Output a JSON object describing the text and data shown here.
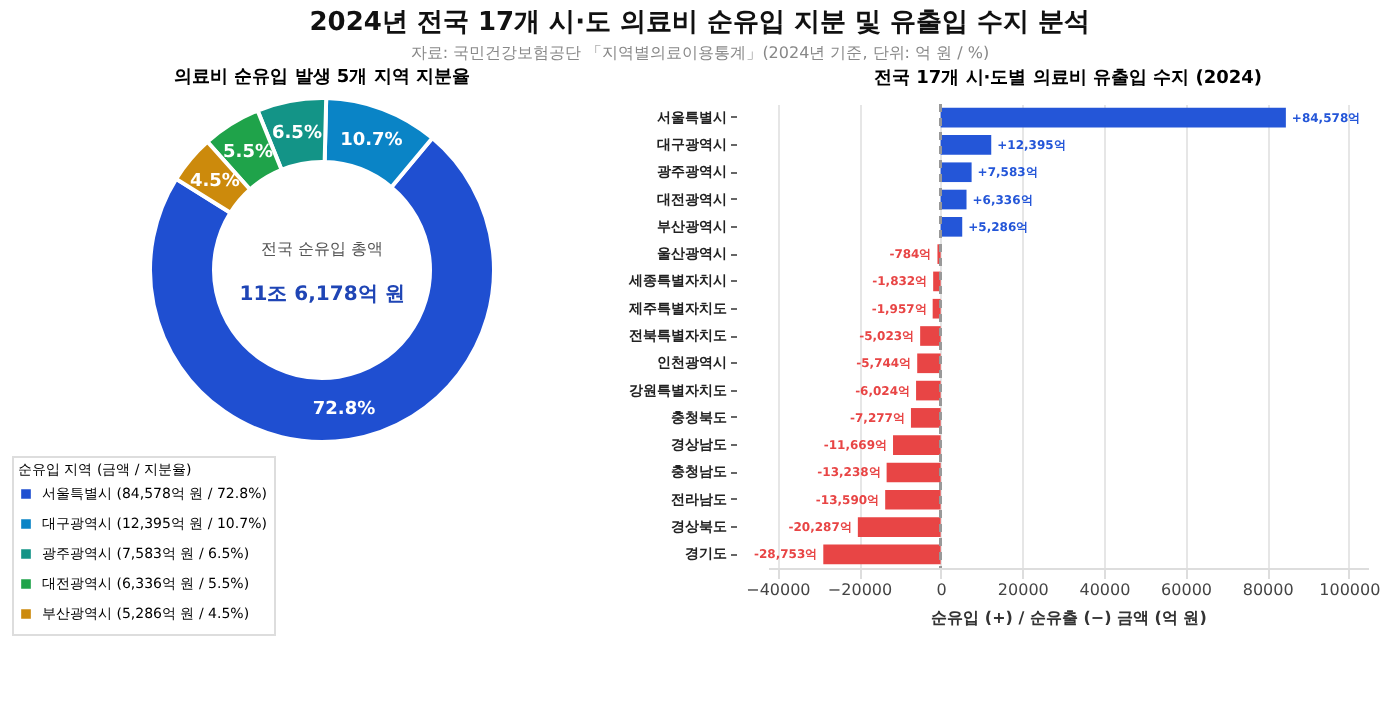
{
  "chart_data": [
    {
      "type": "other",
      "title": "2024년 전국 17개 시·도 의료비 순유입 지분 및 유출입 수지 분석",
      "subtitle": "자료: 국민건강보험공단 「지역별의료이용통계」(2024년 기준, 단위: 억 원 / %)"
    },
    {
      "type": "donut",
      "title": "의료비 순유입 발생 5개 지역 지분율",
      "legend_title": "순유입 지역 (금액 / 지분율)",
      "legend": "bottom",
      "categories": [
        "서울특별시 (84,578억 원 / 72.8%)",
        "대구광역시 (12,395억 원 / 10.7%)",
        "광주광역시 (7,583억 원 / 6.5%)",
        "대전광역시 (6,336억 원 / 5.5%)",
        "부산광역시 (5,286억 원 / 4.5%)"
      ],
      "values": [
        72.8,
        10.7,
        6.5,
        5.5,
        4.5
      ],
      "value_labels": [
        "72.8%",
        "10.7%",
        "6.5%",
        "5.5%",
        "4.5%"
      ],
      "colors": [
        "#1f4fd1",
        "#0a84c6",
        "#139487",
        "#1fa34a",
        "#cc8a0c"
      ],
      "annotations": [
        "전국 순유입 총액",
        "11조 6,178억 원"
      ]
    },
    {
      "type": "bar",
      "orientation": "horizontal",
      "title": "전국 17개 시·도별 의료비 유출입 수지 (2024)",
      "xlabel": "순유입 (+) / 순유출 (−) 금액 (억 원)",
      "categories": [
        "서울특별시",
        "대구광역시",
        "광주광역시",
        "대전광역시",
        "부산광역시",
        "울산광역시",
        "세종특별자치시",
        "제주특별자치도",
        "전북특별자치도",
        "인천광역시",
        "강원특별자치도",
        "충청북도",
        "경상남도",
        "충청남도",
        "전라남도",
        "경상북도",
        "경기도"
      ],
      "values": [
        84578,
        12395,
        7583,
        6336,
        5286,
        -784,
        -1832,
        -1957,
        -5023,
        -5744,
        -6024,
        -7277,
        -11669,
        -13238,
        -13590,
        -20287,
        -28753
      ],
      "value_labels": [
        "+84,578억",
        "+12,395억",
        "+7,583억",
        "+6,336억",
        "+5,286억",
        "-784억",
        "-1,832억",
        "-1,957억",
        "-5,023억",
        "-5,744억",
        "-6,024억",
        "-7,277억",
        "-11,669억",
        "-13,238억",
        "-13,590억",
        "-20,287억",
        "-28,753억"
      ],
      "colors": [
        "#2456d8",
        "#2456d8",
        "#2456d8",
        "#2456d8",
        "#2456d8",
        "#e84545",
        "#e84545",
        "#e84545",
        "#e84545",
        "#e84545",
        "#e84545",
        "#e84545",
        "#e84545",
        "#e84545",
        "#e84545",
        "#e84545",
        "#e84545"
      ],
      "xlim": [
        -42300,
        104700
      ],
      "xticks": [
        -40000,
        -20000,
        0,
        20000,
        40000,
        60000,
        80000,
        100000
      ],
      "grid": "x",
      "ref_lines": [
        {
          "axis": "x",
          "value": 0,
          "color": "#999999",
          "line_style": "dashed"
        }
      ]
    }
  ]
}
